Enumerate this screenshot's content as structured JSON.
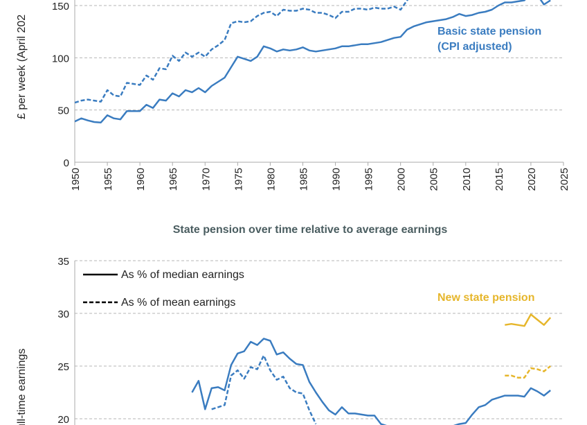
{
  "colors": {
    "blue": "#3a7cc0",
    "gold": "#e6b62b",
    "grid": "#b5b5b5",
    "title": "#4a5d60"
  },
  "chart_data": [
    {
      "type": "line",
      "ylabel": "£ per week (April 202",
      "xlim": [
        1950,
        2025
      ],
      "ylim": [
        0,
        150
      ],
      "xticks": [
        "1950",
        "1955",
        "1960",
        "1965",
        "1970",
        "1975",
        "1980",
        "1985",
        "1990",
        "1995",
        "2000",
        "2005",
        "2010",
        "2015",
        "2020",
        "2025"
      ],
      "yticks": [
        "0",
        "50",
        "100",
        "150"
      ],
      "grid": "horizontal dashed",
      "annotation": [
        "Basic state pension",
        "(CPI adjusted)"
      ],
      "series": [
        {
          "name": "Basic state pension (CPI adjusted)",
          "style": "solid",
          "color": "#3a7cc0",
          "x": [
            1950,
            1951,
            1952,
            1953,
            1954,
            1955,
            1956,
            1957,
            1958,
            1959,
            1960,
            1961,
            1962,
            1963,
            1964,
            1965,
            1966,
            1967,
            1968,
            1969,
            1970,
            1971,
            1972,
            1973,
            1974,
            1975,
            1976,
            1977,
            1978,
            1979,
            1980,
            1981,
            1982,
            1983,
            1984,
            1985,
            1986,
            1987,
            1988,
            1989,
            1990,
            1991,
            1992,
            1993,
            1994,
            1995,
            1996,
            1997,
            1998,
            1999,
            2000,
            2001,
            2002,
            2003,
            2004,
            2005,
            2006,
            2007,
            2008,
            2009,
            2010,
            2011,
            2012,
            2013,
            2014,
            2015,
            2016,
            2017,
            2018,
            2019,
            2020,
            2021,
            2022,
            2023
          ],
          "y": [
            39,
            42,
            40,
            38.5,
            38,
            45,
            42,
            41,
            49,
            49,
            49,
            55,
            52,
            60,
            59,
            66,
            63,
            69,
            67,
            71,
            67,
            73,
            77,
            81,
            91,
            101,
            99,
            97,
            101,
            111,
            109,
            106,
            108,
            107,
            108,
            110,
            107,
            106,
            107,
            108,
            109,
            111,
            111,
            112,
            113,
            113,
            114,
            115,
            117,
            119,
            120,
            127,
            130,
            132,
            134,
            135,
            136,
            137,
            139,
            142,
            140,
            141,
            143,
            144,
            146,
            150,
            153,
            153,
            154,
            155,
            162,
            160,
            151,
            155
          ]
        },
        {
          "style": "dashed",
          "color": "#3a7cc0",
          "x": [
            1950,
            1951,
            1952,
            1953,
            1954,
            1955,
            1956,
            1957,
            1958,
            1959,
            1960,
            1961,
            1962,
            1963,
            1964,
            1965,
            1966,
            1967,
            1968,
            1969,
            1970,
            1971,
            1972,
            1973,
            1974,
            1975,
            1976,
            1977,
            1978,
            1979,
            1980,
            1981,
            1982,
            1983,
            1984,
            1985,
            1986,
            1987,
            1988,
            1989,
            1990,
            1991,
            1992,
            1993,
            1994,
            1995,
            1996,
            1997,
            1998,
            1999,
            2000,
            2001,
            2002
          ],
          "y": [
            57,
            59,
            60,
            59,
            58,
            69,
            64,
            63,
            76,
            75,
            74,
            83,
            79,
            90,
            89,
            102,
            97,
            105,
            101,
            105,
            101,
            108,
            112,
            117,
            133,
            135,
            134,
            135,
            140,
            143,
            144,
            140,
            146,
            145,
            145,
            147,
            146,
            143,
            143,
            141,
            138,
            144,
            144,
            147,
            147,
            146,
            148,
            147,
            147,
            149,
            146,
            155,
            162
          ]
        }
      ]
    },
    {
      "type": "line",
      "title": "State pension over time relative to average earnings",
      "ylabel": "ull-time earnings",
      "xlim": [
        1950,
        2025
      ],
      "ylim": [
        20,
        35
      ],
      "yticks": [
        "20",
        "25",
        "30",
        "35"
      ],
      "grid": "horizontal dashed",
      "legend": {
        "placement": "top-left",
        "entries": [
          {
            "label": "As % of median earnings",
            "style": "solid"
          },
          {
            "label": "As % of mean earnings",
            "style": "dashed"
          }
        ]
      },
      "annotation": "New state pension",
      "series": [
        {
          "name": "Basic state pension, as % of median earnings",
          "style": "solid",
          "color": "#3a7cc0",
          "x": [
            1968,
            1969,
            1970,
            1971,
            1972,
            1973,
            1974,
            1975,
            1976,
            1977,
            1978,
            1979,
            1980,
            1981,
            1982,
            1983,
            1984,
            1985,
            1986,
            1987,
            1988,
            1989,
            1990,
            1991,
            1992,
            1993,
            1994,
            1995,
            1996,
            1997,
            1998
          ],
          "y": [
            22.5,
            23.6,
            20.9,
            22.9,
            23.0,
            22.7,
            25.1,
            26.2,
            26.4,
            27.3,
            27.0,
            27.6,
            27.4,
            26.1,
            26.3,
            25.7,
            25.2,
            25.1,
            23.5,
            22.5,
            21.6,
            20.8,
            20.4,
            21.1,
            20.5,
            20.5,
            20.4,
            20.3,
            20.3,
            19.5,
            19.3
          ]
        },
        {
          "name": "Basic state pension, as % of median earnings (later)",
          "style": "solid",
          "color": "#3a7cc0",
          "x": [
            2008,
            2009,
            2010,
            2011,
            2012,
            2013,
            2014,
            2015,
            2016,
            2017,
            2018,
            2019,
            2020,
            2021,
            2022,
            2023
          ],
          "y": [
            19.3,
            19.5,
            19.6,
            20.4,
            21.1,
            21.3,
            21.8,
            22.0,
            22.2,
            22.2,
            22.2,
            22.1,
            22.9,
            22.6,
            22.2,
            22.7
          ]
        },
        {
          "name": "Basic state pension, as % of mean earnings",
          "style": "dashed",
          "color": "#3a7cc0",
          "x": [
            1971,
            1972,
            1973,
            1974,
            1975,
            1976,
            1977,
            1978,
            1979,
            1980,
            1981,
            1982,
            1983,
            1984,
            1985,
            1986,
            1987
          ],
          "y": [
            20.9,
            21.1,
            21.3,
            24.1,
            24.6,
            23.8,
            24.9,
            24.7,
            26.0,
            24.6,
            23.7,
            24.0,
            22.9,
            22.5,
            22.4,
            20.8,
            19.5
          ]
        },
        {
          "name": "New state pension, as % of median earnings",
          "style": "solid",
          "color": "#e6b62b",
          "x": [
            2016,
            2017,
            2018,
            2019,
            2020,
            2021,
            2022,
            2023
          ],
          "y": [
            28.9,
            29.0,
            28.9,
            28.8,
            29.9,
            29.4,
            28.9,
            29.6
          ]
        },
        {
          "name": "New state pension, as % of mean earnings",
          "style": "dashed",
          "color": "#e6b62b",
          "x": [
            2016,
            2017,
            2018,
            2019,
            2020,
            2021,
            2022,
            2023
          ],
          "y": [
            24.1,
            24.1,
            23.9,
            23.9,
            24.8,
            24.7,
            24.5,
            25.0
          ]
        }
      ]
    }
  ]
}
